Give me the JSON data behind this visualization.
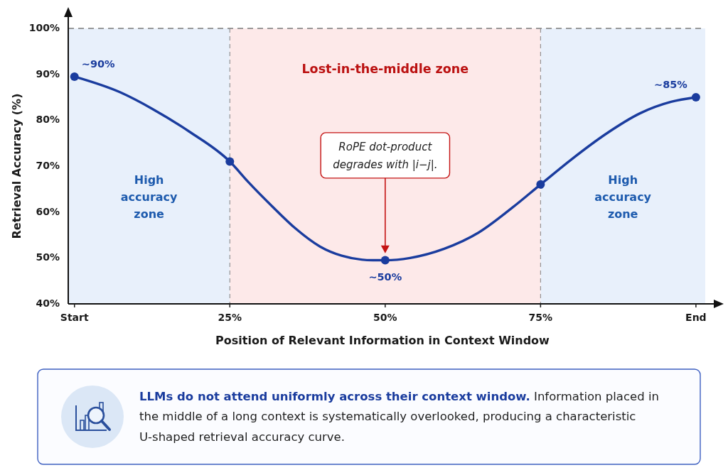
{
  "chart_data": {
    "type": "line",
    "x": [
      0,
      25,
      50,
      75,
      100
    ],
    "series": [
      {
        "color": "#1a3c9e",
        "marker": "none",
        "x": [
          0,
          7.5,
          12.5,
          18.5,
          25,
          28,
          32,
          35.5,
          39.5,
          43,
          48,
          50,
          54,
          59.5,
          65,
          70.5,
          75,
          80,
          85.5,
          91,
          96,
          100
        ],
        "values": [
          89.5,
          86,
          82.5,
          77.5,
          71,
          66.5,
          61,
          56.5,
          52.5,
          50.5,
          49.5,
          49.5,
          50,
          52,
          55.5,
          61,
          66,
          71.5,
          77,
          81.5,
          84,
          85
        ]
      },
      {
        "type": "scatter",
        "color": "#1a3c9e",
        "values": [
          89.5,
          71,
          49.5,
          66,
          85
        ],
        "value_labels": [
          "~90%",
          null,
          "~50%",
          null,
          "~85%"
        ]
      }
    ],
    "xlim": [
      -1,
      101.5
    ],
    "ylim": [
      40,
      100
    ],
    "xticks": [
      {
        "value": 0,
        "label": "Start"
      },
      {
        "value": 25,
        "label": "25%"
      },
      {
        "value": 50,
        "label": "50%"
      },
      {
        "value": 75,
        "label": "75%"
      },
      {
        "value": 100,
        "label": "End"
      }
    ],
    "yticks": [
      {
        "value": 40,
        "label": "40%"
      },
      {
        "value": 50,
        "label": "50%"
      },
      {
        "value": 60,
        "label": "60%"
      },
      {
        "value": 70,
        "label": "70%"
      },
      {
        "value": 80,
        "label": "80%"
      },
      {
        "value": 90,
        "label": "90%"
      },
      {
        "value": 100,
        "label": "100%"
      }
    ],
    "xlabel": "Position of Relevant Information in Context Window",
    "ylabel": "Retrieval Accuracy (%)",
    "marker": "circle",
    "line_style": "solid",
    "bands": [
      {
        "axis": "x",
        "from": -1,
        "to": 25,
        "label": "High accuracy zone",
        "color": "#e8f0fb"
      },
      {
        "axis": "x",
        "from": 25,
        "to": 75,
        "label": "Lost-in-the-middle zone",
        "color": "#fde9e9"
      },
      {
        "axis": "x",
        "from": 75,
        "to": 101.5,
        "label": "High accuracy zone",
        "color": "#e8f0fb"
      }
    ],
    "ref_lines": [
      {
        "axis": "y",
        "value": 100,
        "line_style": "dashed",
        "color": "#7a7a7a"
      },
      {
        "axis": "x",
        "value": 25,
        "line_style": "dashed",
        "color": "#8a8a8a"
      },
      {
        "axis": "x",
        "value": 75,
        "line_style": "dashed",
        "color": "#8a8a8a"
      }
    ],
    "annotations": [
      {
        "text": "RoPE dot-product degrades with |i−j|.",
        "x": 50,
        "y": 51
      },
      "LLMs do not attend uniformly across their context window. Information placed in the middle of a long context is systematically overlooked, producing a characteristic U-shaped retrieval accuracy curve."
    ]
  }
}
